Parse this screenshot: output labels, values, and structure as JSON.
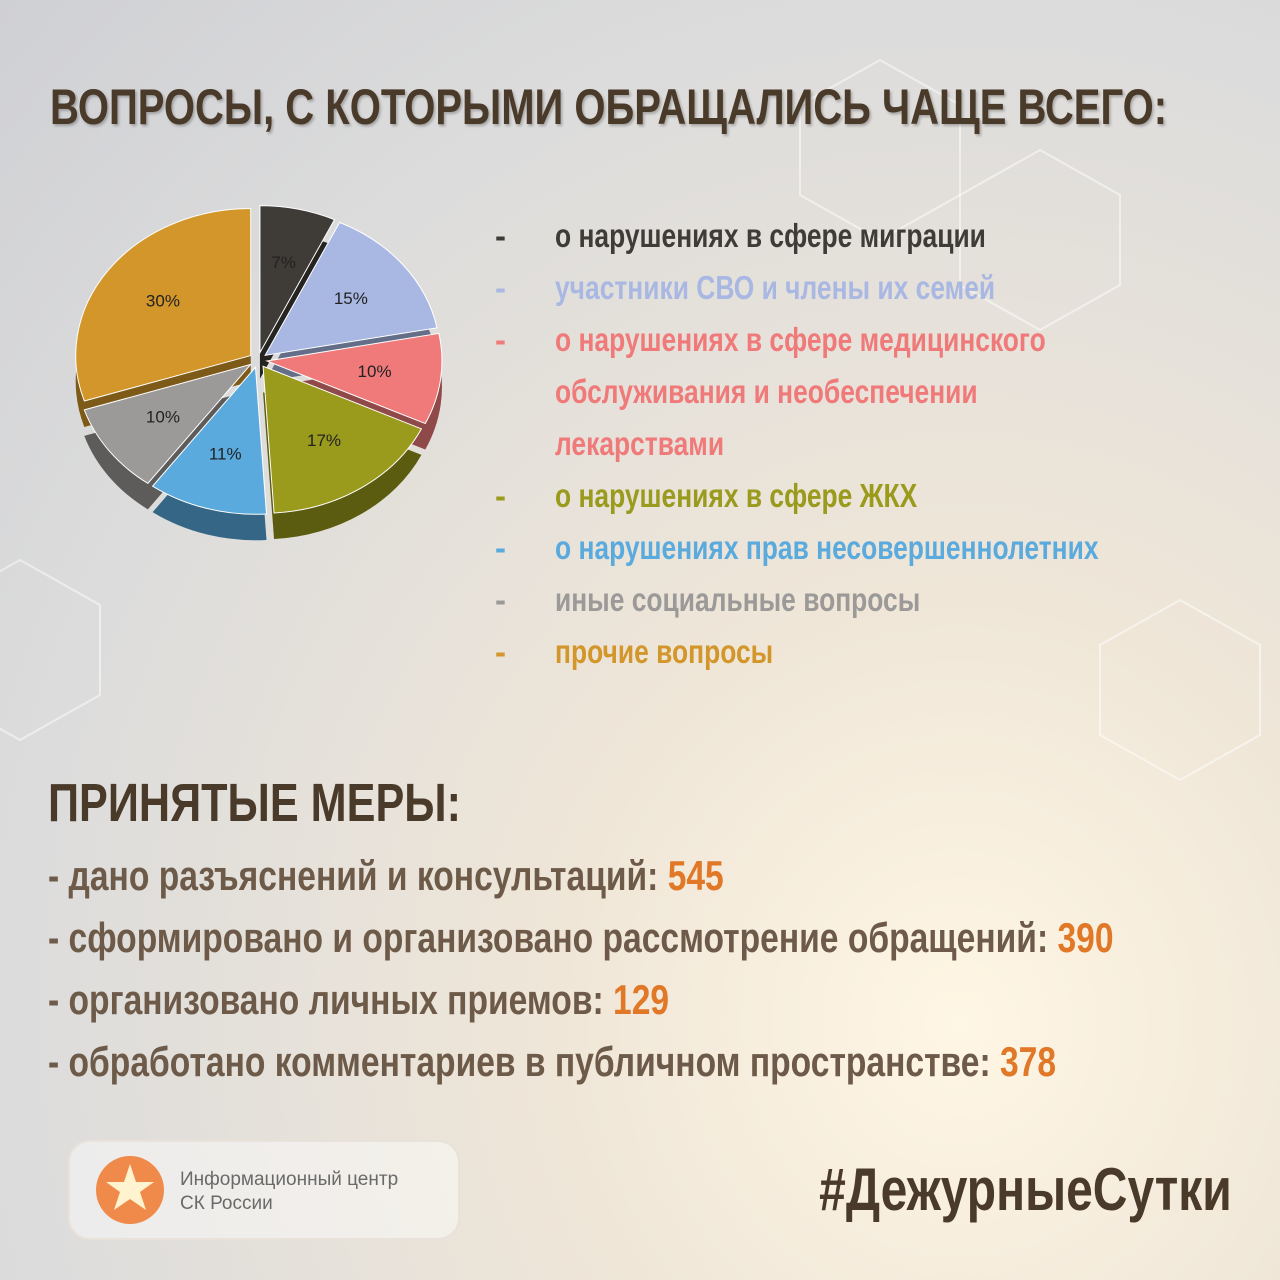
{
  "title": "ВОПРОСЫ, С КОТОРЫМИ ОБРАЩАЛИСЬ ЧАЩЕ ВСЕГО:",
  "chart_data": {
    "type": "pie",
    "categories": [
      "о нарушениях в сфере миграции",
      "участники СВО и члены их семей",
      "о нарушениях в сфере медицинского обслуживания и необеспечении лекарствами",
      "о нарушениях в сфере ЖКХ",
      "о нарушениях прав несовершеннолетних",
      "иные социальные вопросы",
      "прочие вопросы"
    ],
    "values": [
      7,
      15,
      10,
      17,
      11,
      10,
      30
    ],
    "value_labels": [
      "7%",
      "15%",
      "10%",
      "17%",
      "11%",
      "10%",
      "30%"
    ],
    "colors": [
      "#3f3c38",
      "#a9b8e3",
      "#f07a7a",
      "#9a9a1c",
      "#5aaade",
      "#9c9a98",
      "#d3962a"
    ],
    "legend_marker": "-"
  },
  "measures": {
    "title": "ПРИНЯТЫЕ МЕРЫ:",
    "items": [
      {
        "text": "- дано разъяснений и консультаций:",
        "value": 545
      },
      {
        "text": "- сформировано и организовано рассмотрение обращений:",
        "value": 390
      },
      {
        "text": "- организовано личных приемов:",
        "value": 129
      },
      {
        "text": "- обработано комментариев в публичном пространстве:",
        "value": 378
      }
    ]
  },
  "footer": {
    "logo_lines": [
      "Информационный центр",
      "СК России"
    ],
    "hashtag": "#ДежурныеСутки"
  }
}
